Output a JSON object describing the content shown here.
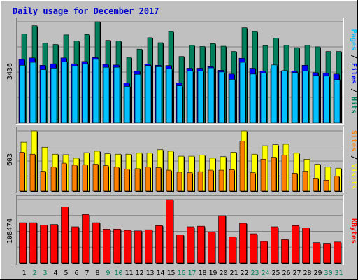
{
  "title": "Daily usage for December 2017",
  "colors": {
    "background": "#c0c0c0",
    "title": "#0000cc",
    "hits": "#00805c",
    "files": "#0000ff",
    "pages": "#00c0ff",
    "visits": "#ffff00",
    "sites": "#ff8000",
    "kbytes": "#ff0000",
    "weekend_label": "#00805c"
  },
  "chart_data": [
    {
      "type": "bar",
      "panel": "requests",
      "max_label": "3436",
      "legend": [
        {
          "text": "Pages",
          "color": "#00c0ff"
        },
        {
          "text": " / ",
          "color": "#000000"
        },
        {
          "text": "Files",
          "color": "#0000ff"
        },
        {
          "text": " / ",
          "color": "#000000"
        },
        {
          "text": "Hits",
          "color": "#00805c"
        }
      ],
      "ylim": [
        0,
        3436
      ],
      "x": [
        1,
        2,
        3,
        4,
        5,
        6,
        7,
        8,
        9,
        10,
        11,
        12,
        13,
        14,
        15,
        16,
        17,
        18,
        19,
        20,
        21,
        22,
        23,
        24,
        25,
        26,
        27,
        28,
        29,
        30,
        31
      ],
      "series": [
        {
          "name": "Hits",
          "color": "#00805c",
          "values": [
            3020,
            3300,
            2710,
            2660,
            2986,
            2780,
            3000,
            3436,
            2800,
            2780,
            2220,
            2500,
            2890,
            2720,
            3100,
            2250,
            2630,
            2590,
            2690,
            2600,
            2420,
            3230,
            3100,
            2620,
            2880,
            2640,
            2550,
            2640,
            2580,
            2420,
            2420
          ]
        },
        {
          "name": "Files",
          "color": "#0000ff",
          "values": [
            2150,
            2200,
            1950,
            2000,
            2200,
            2000,
            2080,
            2210,
            1980,
            1960,
            1350,
            1750,
            1990,
            1950,
            1940,
            1350,
            1850,
            1850,
            1900,
            1780,
            1650,
            2190,
            1850,
            1750,
            1840,
            1750,
            1750,
            1950,
            1700,
            1680,
            1650
          ]
        },
        {
          "name": "Pages",
          "color": "#00c0ff",
          "values": [
            1950,
            2050,
            1800,
            1850,
            2070,
            1920,
            2000,
            2150,
            1880,
            1880,
            1230,
            1640,
            1940,
            1900,
            1820,
            1250,
            1750,
            1760,
            1860,
            1720,
            1470,
            2050,
            1650,
            1690,
            1960,
            1770,
            1700,
            1760,
            1600,
            1580,
            1460
          ]
        }
      ]
    },
    {
      "type": "bar",
      "panel": "visits",
      "max_label": "603",
      "legend": [
        {
          "text": "Sites",
          "color": "#ff8000"
        },
        {
          "text": " / ",
          "color": "#000000"
        },
        {
          "text": "Visits",
          "color": "#ffff00"
        }
      ],
      "ylim": [
        0,
        603
      ],
      "x": [
        1,
        2,
        3,
        4,
        5,
        6,
        7,
        8,
        9,
        10,
        11,
        12,
        13,
        14,
        15,
        16,
        17,
        18,
        19,
        20,
        21,
        22,
        23,
        24,
        25,
        26,
        27,
        28,
        29,
        30,
        31
      ],
      "series": [
        {
          "name": "Visits",
          "color": "#ffff00",
          "values": [
            490,
            603,
            440,
            370,
            365,
            330,
            385,
            400,
            375,
            370,
            370,
            380,
            380,
            415,
            400,
            350,
            350,
            360,
            330,
            345,
            390,
            603,
            370,
            455,
            465,
            470,
            380,
            320,
            270,
            240,
            230
          ]
        },
        {
          "name": "Sites",
          "color": "#ff8000",
          "values": [
            390,
            370,
            200,
            240,
            280,
            260,
            265,
            270,
            255,
            240,
            220,
            225,
            240,
            235,
            210,
            190,
            185,
            195,
            210,
            210,
            215,
            500,
            185,
            320,
            340,
            360,
            180,
            200,
            130,
            110,
            150
          ]
        }
      ]
    },
    {
      "type": "bar",
      "panel": "kbytes",
      "max_label": "108474",
      "legend": [
        {
          "text": "KBytes",
          "color": "#ff0000"
        }
      ],
      "ylim": [
        0,
        108474
      ],
      "x": [
        1,
        2,
        3,
        4,
        5,
        6,
        7,
        8,
        9,
        10,
        11,
        12,
        13,
        14,
        15,
        16,
        17,
        18,
        19,
        20,
        21,
        22,
        23,
        24,
        25,
        26,
        27,
        28,
        29,
        30,
        31
      ],
      "series": [
        {
          "name": "KBytes",
          "color": "#ff0000",
          "values": [
            69000,
            69000,
            65000,
            66000,
            96000,
            62000,
            83000,
            69000,
            58000,
            58000,
            56000,
            55000,
            57000,
            64000,
            108474,
            48000,
            62000,
            63000,
            53000,
            81000,
            45000,
            68000,
            50000,
            37000,
            62000,
            40000,
            64000,
            60000,
            35000,
            34000,
            36000
          ]
        }
      ]
    }
  ],
  "x_labels": [
    {
      "text": "1",
      "weekend": false
    },
    {
      "text": "2",
      "weekend": true
    },
    {
      "text": "3",
      "weekend": true
    },
    {
      "text": "4",
      "weekend": false
    },
    {
      "text": "5",
      "weekend": false
    },
    {
      "text": "6",
      "weekend": false
    },
    {
      "text": "7",
      "weekend": false
    },
    {
      "text": "8",
      "weekend": false
    },
    {
      "text": "9",
      "weekend": true
    },
    {
      "text": "10",
      "weekend": true
    },
    {
      "text": "11",
      "weekend": false
    },
    {
      "text": "12",
      "weekend": false
    },
    {
      "text": "13",
      "weekend": false
    },
    {
      "text": "14",
      "weekend": false
    },
    {
      "text": "15",
      "weekend": false
    },
    {
      "text": "16",
      "weekend": true
    },
    {
      "text": "17",
      "weekend": true
    },
    {
      "text": "18",
      "weekend": false
    },
    {
      "text": "19",
      "weekend": false
    },
    {
      "text": "20",
      "weekend": false
    },
    {
      "text": "21",
      "weekend": false
    },
    {
      "text": "22",
      "weekend": false
    },
    {
      "text": "23",
      "weekend": true
    },
    {
      "text": "24",
      "weekend": true
    },
    {
      "text": "25",
      "weekend": false
    },
    {
      "text": "26",
      "weekend": false
    },
    {
      "text": "27",
      "weekend": false
    },
    {
      "text": "28",
      "weekend": false
    },
    {
      "text": "29",
      "weekend": false
    },
    {
      "text": "30",
      "weekend": true
    },
    {
      "text": "31",
      "weekend": true
    }
  ]
}
